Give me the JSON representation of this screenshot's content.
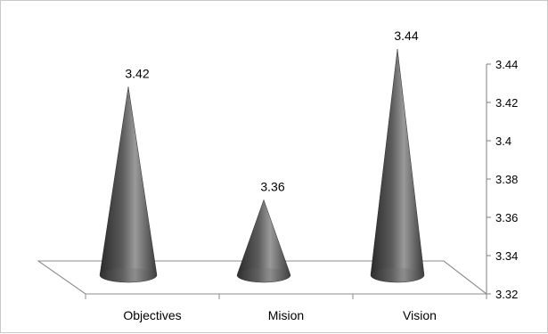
{
  "chart_data": {
    "type": "bar",
    "shape": "cone",
    "three_d": true,
    "categories": [
      "Objectives",
      "Mision",
      "Vision"
    ],
    "values": [
      3.42,
      3.36,
      3.44
    ],
    "data_labels": [
      "3.42",
      "3.36",
      "3.44"
    ],
    "title": "",
    "xlabel": "",
    "ylabel": "",
    "ylim": [
      3.32,
      3.44
    ],
    "yticks": [
      3.32,
      3.34,
      3.36,
      3.38,
      3.4,
      3.42,
      3.44
    ],
    "ytick_labels": [
      "3.32",
      "3.34",
      "3.36",
      "3.38",
      "3.4",
      "3.42",
      "3.44"
    ],
    "y_axis_side": "right",
    "grid": false,
    "legend": "none",
    "colors": {
      "cone_dark": "#2a2a2a",
      "cone_mid": "#6a6a6a",
      "cone_light": "#9a9a9a",
      "axis": "#7f7f7f"
    }
  }
}
